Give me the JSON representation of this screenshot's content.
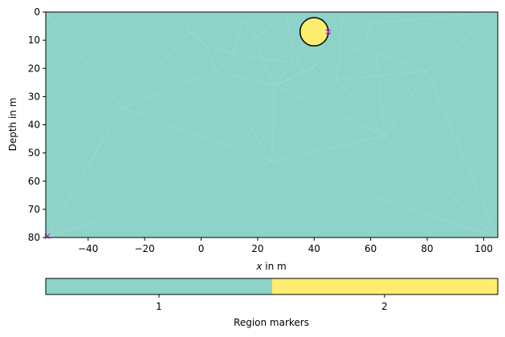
{
  "figure": {
    "ylabel": "Depth in m",
    "xlabel_var": "x",
    "xlabel_unit": " in m",
    "colorbar_label": "Region markers",
    "colorbar_ticks": [
      "1",
      "2"
    ]
  },
  "colors": {
    "region1": "#8dd3c7",
    "region2": "#ffed6f",
    "mesh_line": "#a3ddd3",
    "boundary": "#000000",
    "electrode": "#cc33cc"
  },
  "chart_data": {
    "type": "mesh",
    "xlim": [
      -55,
      105
    ],
    "ylim": [
      80,
      0
    ],
    "xticks": [
      -40,
      -20,
      0,
      20,
      40,
      60,
      80,
      100
    ],
    "yticks": [
      0,
      10,
      20,
      30,
      40,
      50,
      60,
      70,
      80
    ],
    "regions": [
      {
        "marker": 1,
        "shape": "rectangle",
        "x": [
          -55,
          105
        ],
        "depth": [
          0,
          80
        ]
      },
      {
        "marker": 2,
        "shape": "circle",
        "center": [
          40,
          7
        ],
        "radius": 5
      }
    ],
    "markers": [
      {
        "x": 45,
        "depth": 7,
        "symbol": "x"
      },
      {
        "x": -55,
        "depth": 79.5,
        "symbol": "x"
      }
    ],
    "mesh_nodes": [
      [
        -55,
        0
      ],
      [
        105,
        0
      ],
      [
        -55,
        80
      ],
      [
        105,
        80
      ],
      [
        -28,
        34
      ],
      [
        -8,
        0
      ],
      [
        -4,
        7
      ],
      [
        2,
        12
      ],
      [
        5,
        21
      ],
      [
        11,
        15
      ],
      [
        20,
        9
      ],
      [
        21,
        16
      ],
      [
        26,
        26
      ],
      [
        32,
        18
      ],
      [
        32,
        10
      ],
      [
        36,
        22
      ],
      [
        42,
        18
      ],
      [
        48,
        24
      ],
      [
        49,
        16
      ],
      [
        58,
        12
      ],
      [
        62,
        15
      ],
      [
        65,
        44
      ],
      [
        80,
        21
      ],
      [
        25,
        53
      ],
      [
        30,
        0
      ],
      [
        50,
        0
      ],
      [
        15,
        3
      ],
      [
        60,
        4
      ]
    ],
    "mesh_edges": [
      [
        4,
        6
      ],
      [
        4,
        8
      ],
      [
        4,
        23
      ],
      [
        4,
        0
      ],
      [
        4,
        2
      ],
      [
        6,
        7
      ],
      [
        7,
        8
      ],
      [
        8,
        9
      ],
      [
        9,
        10
      ],
      [
        10,
        11
      ],
      [
        11,
        12
      ],
      [
        12,
        13
      ],
      [
        13,
        14
      ],
      [
        14,
        15
      ],
      [
        15,
        16
      ],
      [
        16,
        17
      ],
      [
        17,
        18
      ],
      [
        18,
        19
      ],
      [
        19,
        20
      ],
      [
        20,
        21
      ],
      [
        21,
        22
      ],
      [
        22,
        1
      ],
      [
        22,
        3
      ],
      [
        21,
        3
      ],
      [
        23,
        2
      ],
      [
        23,
        3
      ],
      [
        23,
        21
      ],
      [
        8,
        12
      ],
      [
        12,
        21
      ],
      [
        12,
        23
      ],
      [
        17,
        22
      ],
      [
        5,
        6
      ],
      [
        6,
        9
      ],
      [
        9,
        26
      ],
      [
        26,
        10
      ],
      [
        10,
        24
      ],
      [
        14,
        24
      ],
      [
        18,
        25
      ],
      [
        19,
        27
      ],
      [
        27,
        1
      ],
      [
        20,
        22
      ],
      [
        17,
        21
      ],
      [
        8,
        23
      ],
      [
        16,
        12
      ],
      [
        7,
        9
      ],
      [
        15,
        12
      ],
      [
        13,
        9
      ]
    ]
  }
}
